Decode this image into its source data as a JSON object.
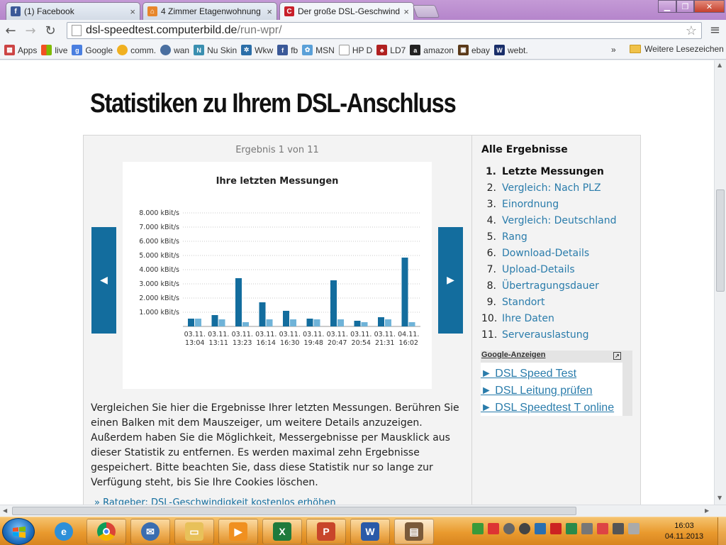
{
  "browser": {
    "tabs": [
      {
        "label": "(1) Facebook",
        "icon": "facebook-icon"
      },
      {
        "label": "4 Zimmer Etagenwohnung",
        "icon": "home-icon"
      },
      {
        "label": "Der große DSL-Geschwind",
        "icon": "computerbild-icon"
      }
    ],
    "url_host": "dsl-speedtest.computerbild.de",
    "url_path": "/run-wpr/",
    "bookmarks": [
      "Apps",
      "live",
      "Google",
      "comm.",
      "wan",
      "Nu Skin",
      "Wkw",
      "fb",
      "MSN",
      "HP D",
      "LD7",
      "amazon",
      "ebay",
      "webt."
    ],
    "bookmarks_more": "»",
    "bookmarks_other": "Weitere Lesezeichen"
  },
  "page": {
    "title": "Statistiken zu Ihrem DSL-Anschluss",
    "result_count": "Ergebnis 1 von 11",
    "description": "Vergleichen Sie hier die Ergebnisse Ihrer letzten Messungen. Berühren Sie einen Balken mit dem Mauszeiger, um weitere Details anzuzeigen. Außerdem haben Sie die Möglichkeit, Messergebnisse per Mausklick aus dieser Statistik zu entfernen. Es werden maximal zehn Ergebnisse gespeichert. Bitte beachten Sie, dass diese Statistik nur so lange zur Verfügung steht, bis Sie Ihre Cookies löschen.",
    "more_link": "» Ratgeber: DSL-Geschwindigkeit kostenlos erhöhen"
  },
  "sidebar": {
    "title": "Alle Ergebnisse",
    "items": [
      {
        "num": "1.",
        "label": "Letzte Messungen"
      },
      {
        "num": "2.",
        "label": "Vergleich: Nach PLZ"
      },
      {
        "num": "3.",
        "label": "Einordnung"
      },
      {
        "num": "4.",
        "label": "Vergleich: Deutschland"
      },
      {
        "num": "5.",
        "label": "Rang"
      },
      {
        "num": "6.",
        "label": "Download-Details"
      },
      {
        "num": "7.",
        "label": "Upload-Details"
      },
      {
        "num": "8.",
        "label": "Übertragungsdauer"
      },
      {
        "num": "9.",
        "label": "Standort"
      },
      {
        "num": "10.",
        "label": "Ihre Daten"
      },
      {
        "num": "11.",
        "label": "Serverauslastung"
      }
    ],
    "ads_title": "Google-Anzeigen",
    "ads": [
      "► DSL Speed Test",
      "► DSL Leitung prüfen",
      "► DSL Speedtest T online"
    ]
  },
  "chart_data": {
    "type": "bar",
    "title": "Ihre letzten Messungen",
    "categories": [
      "03.11. 13:04",
      "03.11. 13:11",
      "03.11. 13:23",
      "03.11. 16:14",
      "03.11. 16:30",
      "03.11. 19:48",
      "03.11. 20:47",
      "03.11. 20:54",
      "03.11. 21:31",
      "04.11. 16:02"
    ],
    "series": [
      {
        "values": [
          550,
          800,
          3400,
          1700,
          1100,
          550,
          3250,
          400,
          650,
          4850
        ],
        "color": "#136d9e"
      },
      {
        "values": [
          550,
          500,
          300,
          500,
          500,
          500,
          500,
          300,
          500,
          300
        ],
        "color": "#6fb3d8"
      }
    ],
    "y_ticks": [
      "1.000 kBit/s",
      "2.000 kBit/s",
      "3.000 kBit/s",
      "4.000 kBit/s",
      "5.000 kBit/s",
      "6.000 kBit/s",
      "7.000 kBit/s",
      "8.000 kBit/s"
    ],
    "ylim": [
      0,
      8000
    ],
    "grid": true
  },
  "taskbar": {
    "time": "16:03",
    "date": "04.11.2013",
    "apps": [
      "internet-explorer-icon",
      "chrome-icon",
      "thunderbird-icon",
      "explorer-icon",
      "media-player-icon",
      "excel-icon",
      "powerpoint-icon",
      "word-icon",
      "app-icon"
    ]
  }
}
